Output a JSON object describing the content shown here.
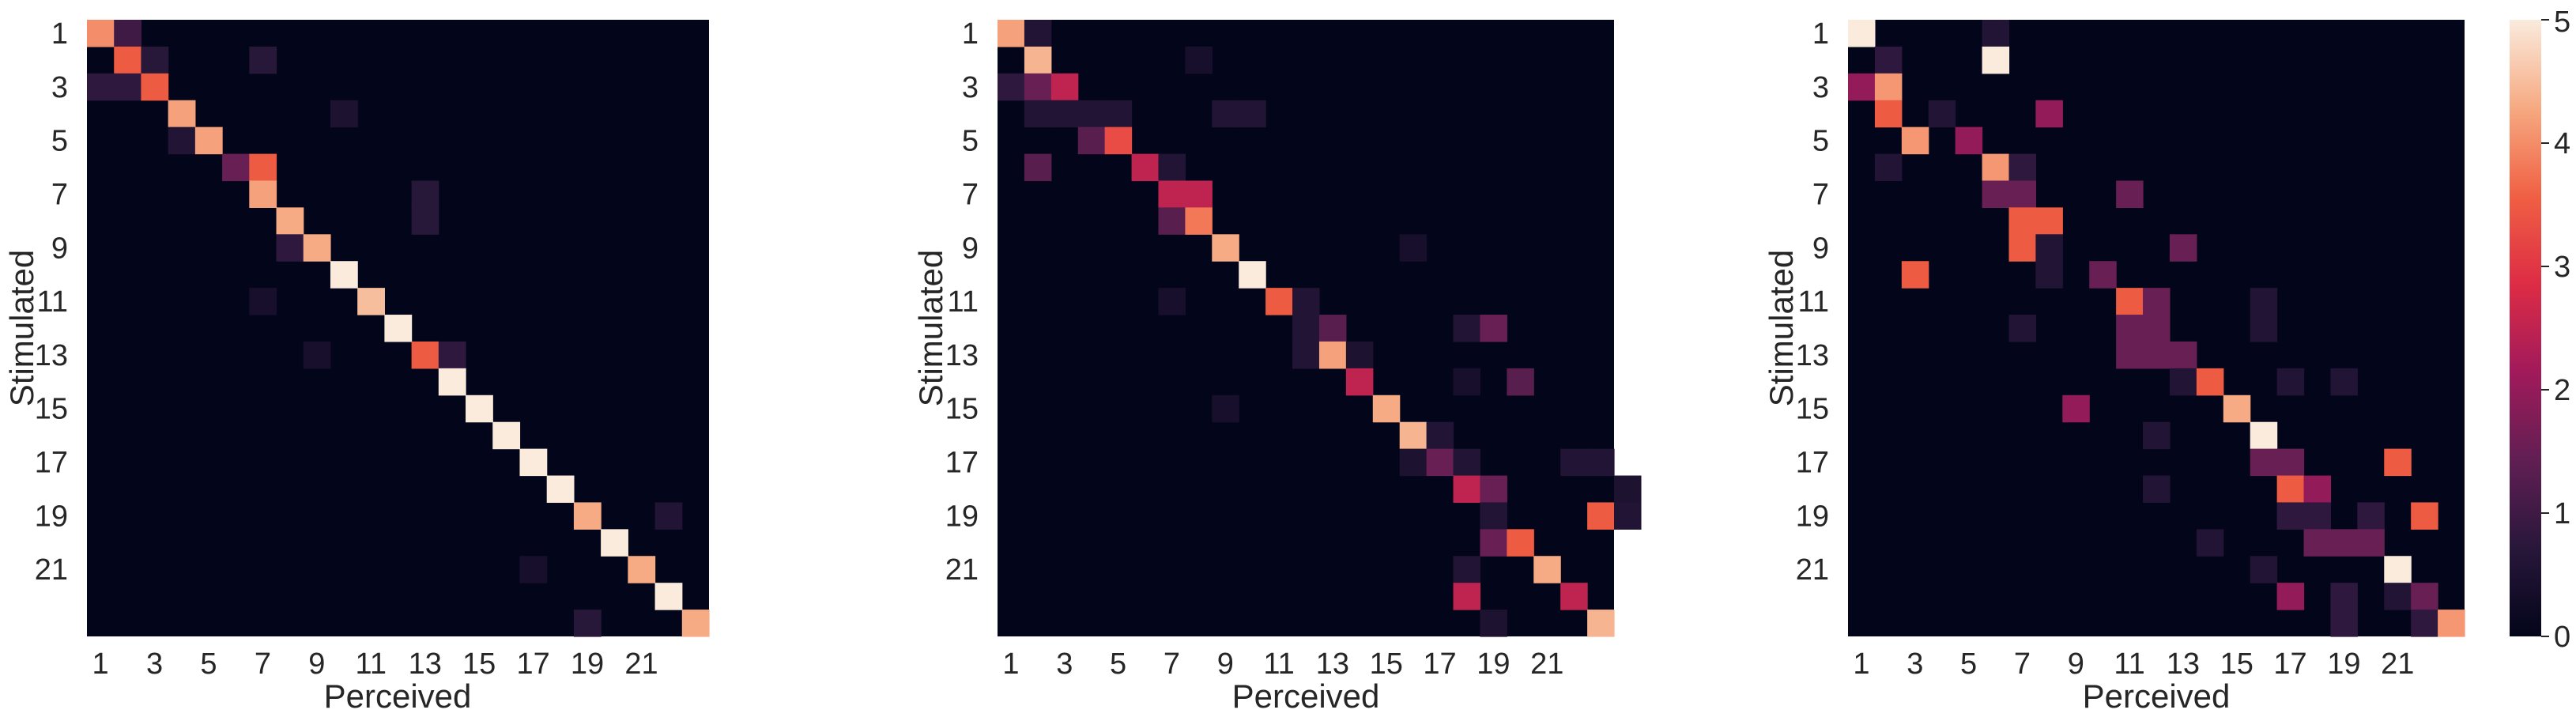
{
  "chart_data": {
    "type": "heatmap",
    "colormap": "rocket",
    "color_range": [
      0,
      5
    ],
    "colorbar_ticks": [
      "0",
      "1",
      "2",
      "3",
      "4",
      "5"
    ],
    "panels": [
      {
        "xlabel": "Perceived",
        "ylabel": "Stimulated",
        "xticklabels": [
          "1",
          "3",
          "5",
          "7",
          "9",
          "11",
          "13",
          "15",
          "17",
          "19",
          "21"
        ],
        "yticklabels": [
          "1",
          "3",
          "5",
          "7",
          "9",
          "11",
          "13",
          "15",
          "17",
          "19",
          "21"
        ],
        "cells": [
          [
            1,
            1,
            4
          ],
          [
            1,
            2,
            1
          ],
          [
            2,
            2,
            3.5
          ],
          [
            2,
            3,
            0.7
          ],
          [
            2,
            7,
            0.7
          ],
          [
            3,
            1,
            0.8
          ],
          [
            3,
            2,
            0.8
          ],
          [
            3,
            3,
            3.5
          ],
          [
            4,
            4,
            4.2
          ],
          [
            4,
            10,
            0.5
          ],
          [
            5,
            4,
            0.6
          ],
          [
            5,
            5,
            4.2
          ],
          [
            6,
            6,
            1.5
          ],
          [
            6,
            7,
            3.5
          ],
          [
            7,
            7,
            4.2
          ],
          [
            7,
            13,
            0.7
          ],
          [
            8,
            8,
            4.3
          ],
          [
            8,
            13,
            0.7
          ],
          [
            9,
            8,
            0.8
          ],
          [
            9,
            9,
            4.3
          ],
          [
            10,
            10,
            5
          ],
          [
            11,
            7,
            0.4
          ],
          [
            11,
            11,
            4.5
          ],
          [
            12,
            12,
            5
          ],
          [
            13,
            9,
            0.4
          ],
          [
            13,
            13,
            3.5
          ],
          [
            13,
            14,
            0.8
          ],
          [
            14,
            14,
            5
          ],
          [
            15,
            15,
            5
          ],
          [
            16,
            16,
            5
          ],
          [
            17,
            17,
            5
          ],
          [
            18,
            18,
            5
          ],
          [
            19,
            19,
            4.3
          ],
          [
            19,
            22,
            0.6
          ],
          [
            20,
            20,
            5
          ],
          [
            21,
            17,
            0.4
          ],
          [
            21,
            21,
            4.3
          ],
          [
            22,
            22,
            5
          ],
          [
            23,
            19,
            0.7
          ],
          [
            23,
            23,
            4.3
          ]
        ]
      },
      {
        "xlabel": "Perceived",
        "ylabel": "Stimulated",
        "xticklabels": [
          "1",
          "3",
          "5",
          "7",
          "9",
          "11",
          "13",
          "15",
          "17",
          "19",
          "21"
        ],
        "yticklabels": [
          "1",
          "3",
          "5",
          "7",
          "9",
          "11",
          "13",
          "15",
          "17",
          "19",
          "21"
        ],
        "cells": [
          [
            1,
            1,
            4.2
          ],
          [
            1,
            2,
            0.6
          ],
          [
            2,
            2,
            4.4
          ],
          [
            2,
            8,
            0.4
          ],
          [
            3,
            1,
            0.8
          ],
          [
            3,
            2,
            1.5
          ],
          [
            3,
            3,
            2.5
          ],
          [
            4,
            2,
            0.6
          ],
          [
            4,
            3,
            0.6
          ],
          [
            4,
            4,
            0.6
          ],
          [
            4,
            5,
            0.6
          ],
          [
            4,
            9,
            0.6
          ],
          [
            4,
            10,
            0.6
          ],
          [
            5,
            4,
            1.3
          ],
          [
            5,
            5,
            3.3
          ],
          [
            6,
            2,
            1.3
          ],
          [
            6,
            6,
            2.5
          ],
          [
            6,
            7,
            0.6
          ],
          [
            7,
            7,
            2.5
          ],
          [
            7,
            8,
            2.5
          ],
          [
            8,
            7,
            1.3
          ],
          [
            8,
            8,
            3.8
          ],
          [
            9,
            9,
            4.3
          ],
          [
            9,
            16,
            0.4
          ],
          [
            10,
            10,
            5
          ],
          [
            11,
            7,
            0.4
          ],
          [
            11,
            11,
            3.5
          ],
          [
            11,
            12,
            0.6
          ],
          [
            12,
            12,
            0.6
          ],
          [
            12,
            13,
            1.3
          ],
          [
            12,
            18,
            0.6
          ],
          [
            12,
            19,
            1.5
          ],
          [
            13,
            12,
            0.6
          ],
          [
            13,
            13,
            4.2
          ],
          [
            13,
            14,
            0.5
          ],
          [
            14,
            14,
            2.5
          ],
          [
            14,
            18,
            0.4
          ],
          [
            14,
            20,
            1.3
          ],
          [
            15,
            9,
            0.4
          ],
          [
            15,
            15,
            4.3
          ],
          [
            16,
            16,
            4.4
          ],
          [
            16,
            17,
            0.6
          ],
          [
            17,
            16,
            0.5
          ],
          [
            17,
            17,
            1.5
          ],
          [
            17,
            18,
            0.6
          ],
          [
            17,
            22,
            0.6
          ],
          [
            17,
            23,
            0.6
          ],
          [
            18,
            18,
            2.5
          ],
          [
            18,
            19,
            1.5
          ],
          [
            18,
            24,
            0.5
          ],
          [
            19,
            19,
            0.6
          ],
          [
            19,
            23,
            3.5
          ],
          [
            19,
            24,
            0.6
          ],
          [
            20,
            19,
            1.5
          ],
          [
            20,
            20,
            3.5
          ],
          [
            21,
            18,
            0.6
          ],
          [
            21,
            21,
            4.3
          ],
          [
            22,
            18,
            2.5
          ],
          [
            22,
            22,
            2.5
          ],
          [
            23,
            19,
            0.5
          ],
          [
            23,
            23,
            4.4
          ]
        ]
      },
      {
        "xlabel": "Perceived",
        "ylabel": "Stimulated",
        "xticklabels": [
          "1",
          "3",
          "5",
          "7",
          "9",
          "11",
          "13",
          "15",
          "17",
          "19",
          "21"
        ],
        "yticklabels": [
          "1",
          "3",
          "5",
          "7",
          "9",
          "11",
          "13",
          "15",
          "17",
          "19",
          "21"
        ],
        "cells": [
          [
            1,
            1,
            5
          ],
          [
            1,
            6,
            0.6
          ],
          [
            2,
            2,
            0.8
          ],
          [
            2,
            6,
            5
          ],
          [
            3,
            1,
            2
          ],
          [
            3,
            2,
            4.1
          ],
          [
            4,
            2,
            3.5
          ],
          [
            4,
            4,
            0.6
          ],
          [
            4,
            8,
            2
          ],
          [
            5,
            3,
            4.1
          ],
          [
            5,
            5,
            2
          ],
          [
            6,
            2,
            0.6
          ],
          [
            6,
            6,
            4.1
          ],
          [
            6,
            7,
            0.8
          ],
          [
            7,
            6,
            1.5
          ],
          [
            7,
            7,
            1.5
          ],
          [
            7,
            11,
            1.5
          ],
          [
            8,
            7,
            3.5
          ],
          [
            8,
            8,
            3.5
          ],
          [
            9,
            7,
            3.5
          ],
          [
            9,
            8,
            0.6
          ],
          [
            9,
            13,
            1.5
          ],
          [
            10,
            3,
            3.5
          ],
          [
            10,
            8,
            0.6
          ],
          [
            10,
            10,
            1.5
          ],
          [
            11,
            11,
            3.5
          ],
          [
            11,
            12,
            1.5
          ],
          [
            11,
            16,
            0.6
          ],
          [
            12,
            7,
            0.6
          ],
          [
            12,
            11,
            1.5
          ],
          [
            12,
            12,
            1.5
          ],
          [
            12,
            16,
            0.6
          ],
          [
            13,
            11,
            1.5
          ],
          [
            13,
            12,
            1.5
          ],
          [
            13,
            13,
            1.5
          ],
          [
            14,
            13,
            0.6
          ],
          [
            14,
            14,
            3.5
          ],
          [
            14,
            17,
            0.6
          ],
          [
            14,
            19,
            0.6
          ],
          [
            15,
            9,
            2
          ],
          [
            15,
            15,
            4.3
          ],
          [
            16,
            12,
            0.6
          ],
          [
            16,
            16,
            5
          ],
          [
            17,
            16,
            1.5
          ],
          [
            17,
            17,
            1.5
          ],
          [
            17,
            21,
            3.5
          ],
          [
            18,
            12,
            0.6
          ],
          [
            18,
            17,
            3.5
          ],
          [
            18,
            18,
            2
          ],
          [
            19,
            17,
            0.8
          ],
          [
            19,
            18,
            0.8
          ],
          [
            19,
            20,
            0.8
          ],
          [
            19,
            22,
            3.5
          ],
          [
            20,
            14,
            0.6
          ],
          [
            20,
            18,
            1.5
          ],
          [
            20,
            19,
            1.5
          ],
          [
            20,
            20,
            1.5
          ],
          [
            21,
            16,
            0.6
          ],
          [
            21,
            21,
            5
          ],
          [
            22,
            17,
            2
          ],
          [
            22,
            19,
            0.8
          ],
          [
            22,
            21,
            0.6
          ],
          [
            22,
            22,
            1.5
          ],
          [
            23,
            19,
            0.8
          ],
          [
            23,
            22,
            0.8
          ],
          [
            23,
            23,
            4.1
          ]
        ]
      }
    ]
  }
}
